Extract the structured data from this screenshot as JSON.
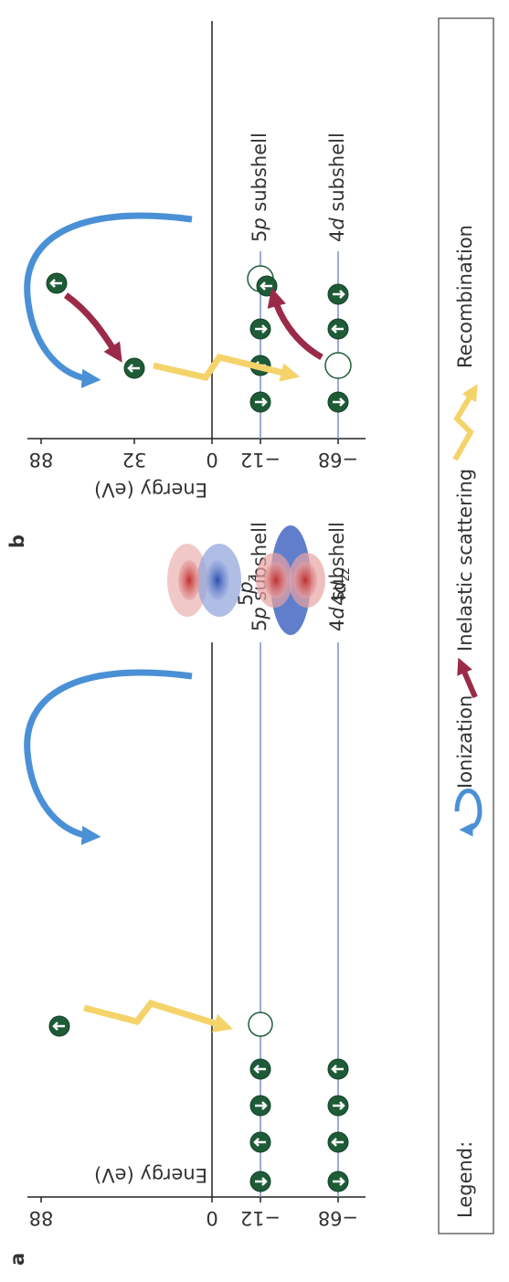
{
  "panels": [
    {
      "label": "a",
      "axis_label": "Energy (eV)",
      "ticks": [
        "88",
        "0",
        "−12",
        "−68"
      ],
      "levels": [
        [
          "5",
          "p",
          " subshell"
        ],
        [
          "4",
          "d",
          " subshell"
        ]
      ]
    },
    {
      "label": "b",
      "axis_label": "Energy (eV)",
      "ticks": [
        "88",
        "32",
        "0",
        "−12",
        "−68"
      ],
      "levels": [
        [
          "5",
          "p",
          " subshell"
        ],
        [
          "4",
          "d",
          " subshell"
        ]
      ]
    }
  ],
  "orbitals": [
    [
      "5",
      "p",
      "z"
    ],
    [
      "4",
      "d",
      "zz"
    ]
  ],
  "legend": {
    "title": "Legend:",
    "items": [
      "Ionization",
      "Inelastic scattering",
      "Recombination"
    ]
  }
}
